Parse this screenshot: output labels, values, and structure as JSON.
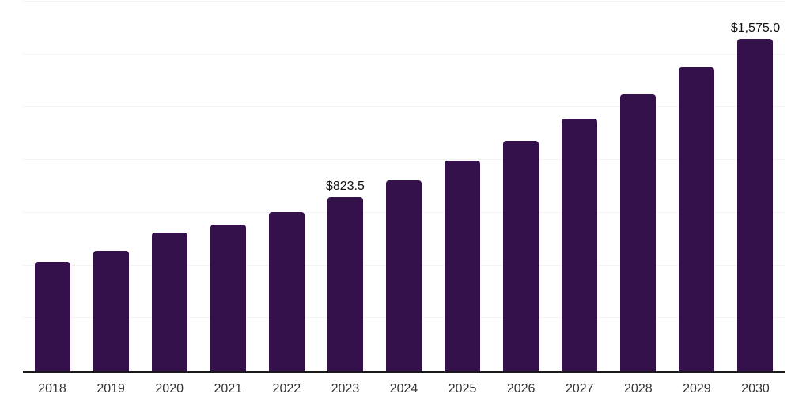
{
  "chart_data": {
    "type": "bar",
    "categories": [
      "2018",
      "2019",
      "2020",
      "2021",
      "2022",
      "2023",
      "2024",
      "2025",
      "2026",
      "2027",
      "2028",
      "2029",
      "2030"
    ],
    "values": [
      517,
      570,
      655,
      692,
      753,
      823.5,
      905,
      996,
      1092,
      1194,
      1312,
      1438,
      1575
    ],
    "data_labels": [
      "",
      "",
      "",
      "",
      "",
      "$823.5",
      "",
      "",
      "",
      "",
      "",
      "",
      "$1,575.0"
    ],
    "title": "",
    "xlabel": "",
    "ylabel": "",
    "ylim": [
      0,
      1750
    ],
    "gridline_step": 250,
    "grid": "horizontal-only",
    "legend": "none",
    "colors": {
      "bar": "#34114a",
      "gridline": "#f3f3f3",
      "axis_line": "#1a1a1a",
      "tick_label": "#333333",
      "data_label": "#111111",
      "background": "#ffffff"
    }
  }
}
